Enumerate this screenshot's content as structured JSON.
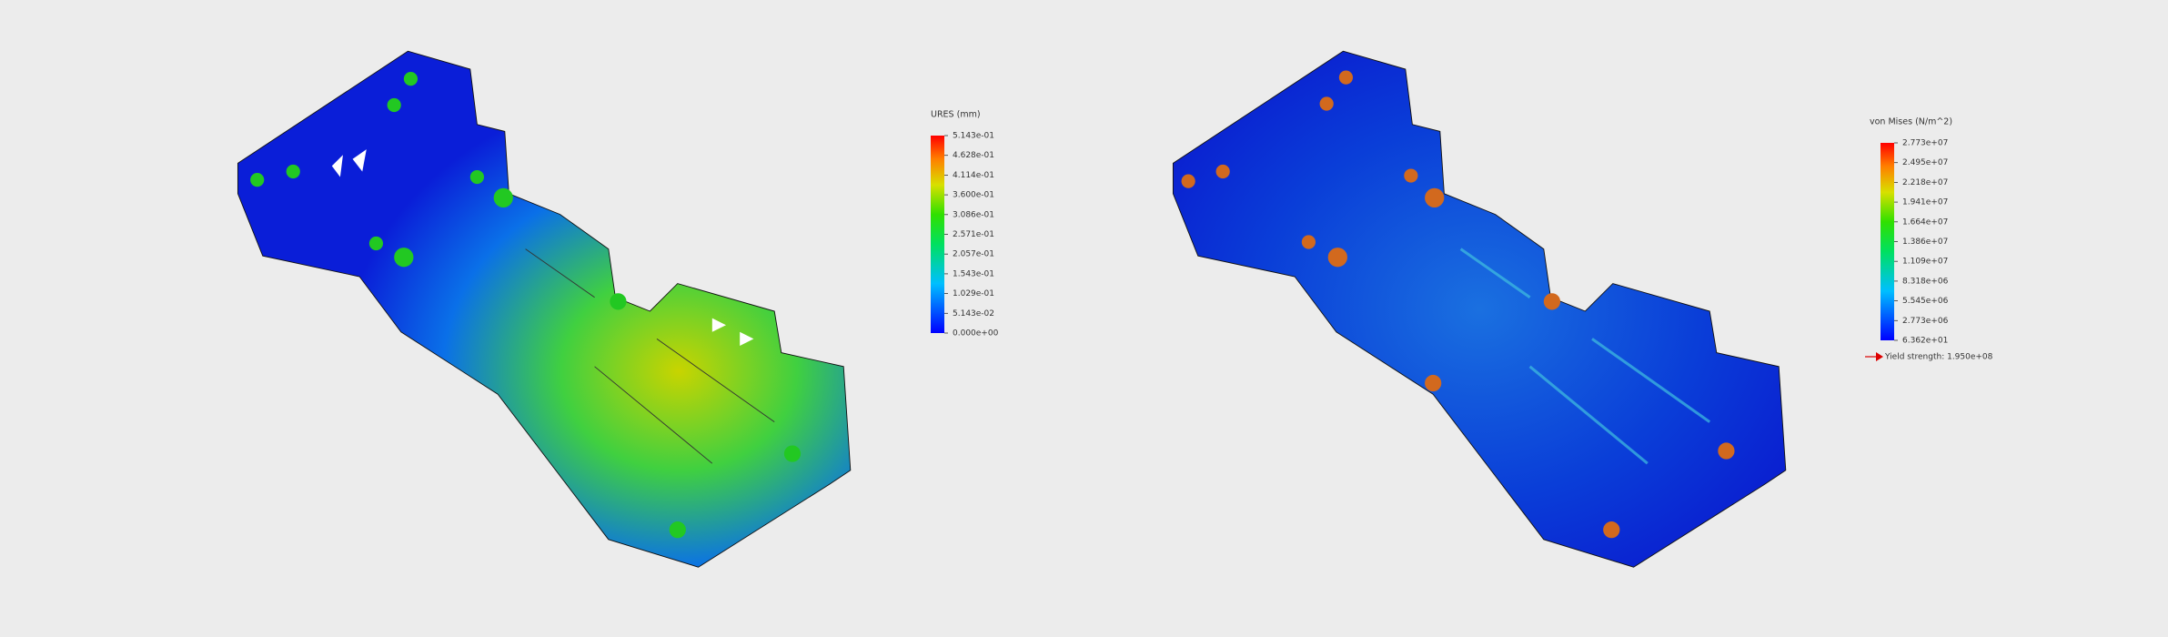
{
  "legends": [
    {
      "title": "URES (mm)",
      "labels": [
        "5.143e-01",
        "4.628e-01",
        "4.114e-01",
        "3.600e-01",
        "3.086e-01",
        "2.571e-01",
        "2.057e-01",
        "1.543e-01",
        "1.029e-01",
        "5.143e-02",
        "0.000e+00"
      ]
    },
    {
      "title": "von Mises (N/m^2)",
      "labels": [
        "2.773e+07",
        "2.495e+07",
        "2.218e+07",
        "1.941e+07",
        "1.664e+07",
        "1.386e+07",
        "1.109e+07",
        "8.318e+06",
        "5.545e+06",
        "2.773e+06",
        "6.362e+01"
      ],
      "yield_label": "Yield strength: 1.950e+08"
    }
  ]
}
